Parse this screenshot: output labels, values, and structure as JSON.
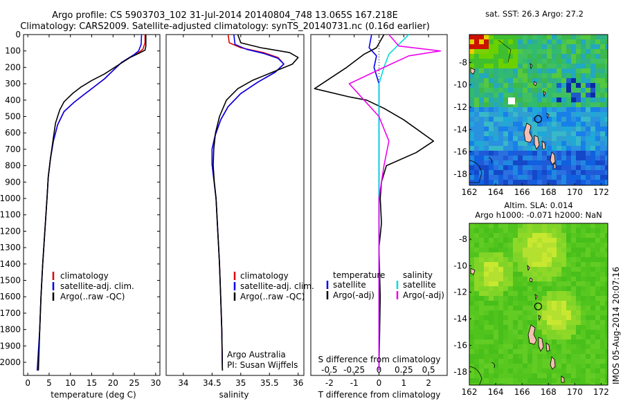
{
  "header": {
    "title_line1": "Argo profile: CS 5903703_102 31-Jul-2014 20140804_748 13.065S 167.218E",
    "title_line2": "Climatology: CARS2009. Satellite-adjusted climatology: synTS_20140731.nc (0.16d earlier)"
  },
  "side_stamp": "IMOS 05-Aug-2014 20:07:16",
  "colors": {
    "climatology": "#e00000",
    "satellite": "#0000ee",
    "argo": "#000000",
    "satellite_salinity": "#00dddd",
    "argo_salinity": "#ee00ee"
  },
  "chart_data": [
    {
      "type": "line",
      "id": "temperature",
      "xlabel": "temperature (deg C)",
      "ylabel": "",
      "xlim": [
        -1,
        31
      ],
      "ylim": [
        2080,
        0
      ],
      "x_ticks": [
        0,
        5,
        10,
        15,
        20,
        25,
        30
      ],
      "y_ticks": [
        0,
        100,
        200,
        300,
        400,
        500,
        600,
        700,
        800,
        900,
        1000,
        1100,
        1200,
        1300,
        1400,
        1500,
        1600,
        1700,
        1800,
        1900,
        2000
      ],
      "legend": {
        "position": "lower-center",
        "entries": [
          "climatology",
          "satellite-adj. clim.",
          "Argo(..raw -QC)"
        ]
      },
      "series": [
        {
          "name": "climatology",
          "color": "#e00000",
          "points": [
            [
              27.5,
              0
            ],
            [
              27.5,
              50
            ],
            [
              27.0,
              90
            ],
            [
              26.0,
              110
            ],
            [
              24.5,
              130
            ],
            [
              22.0,
              170
            ],
            [
              20.0,
              220
            ],
            [
              18.0,
              270
            ],
            [
              16.0,
              310
            ],
            [
              13.5,
              360
            ],
            [
              11.0,
              410
            ],
            [
              8.5,
              470
            ],
            [
              7.0,
              550
            ],
            [
              6.0,
              650
            ],
            [
              5.3,
              760
            ],
            [
              4.8,
              870
            ],
            [
              4.5,
              1000
            ],
            [
              4.0,
              1200
            ],
            [
              3.5,
              1400
            ],
            [
              3.1,
              1600
            ],
            [
              2.8,
              1800
            ],
            [
              2.4,
              2050
            ]
          ]
        },
        {
          "name": "satellite-adj. clim.",
          "color": "#0000ee",
          "points": [
            [
              26.7,
              0
            ],
            [
              26.6,
              60
            ],
            [
              26.0,
              100
            ],
            [
              24.8,
              125
            ],
            [
              22.0,
              170
            ],
            [
              20.0,
              220
            ],
            [
              18.0,
              270
            ],
            [
              16.0,
              310
            ],
            [
              13.5,
              360
            ],
            [
              11.0,
              410
            ],
            [
              8.5,
              470
            ],
            [
              7.0,
              550
            ],
            [
              6.0,
              650
            ],
            [
              5.3,
              760
            ],
            [
              4.8,
              870
            ],
            [
              4.5,
              1000
            ],
            [
              4.0,
              1200
            ],
            [
              3.5,
              1400
            ],
            [
              3.1,
              1600
            ],
            [
              2.8,
              1800
            ],
            [
              2.2,
              2050
            ]
          ]
        },
        {
          "name": "Argo(..raw -QC)",
          "color": "#000000",
          "points": [
            [
              27.7,
              0
            ],
            [
              27.7,
              70
            ],
            [
              27.5,
              95
            ],
            [
              26.0,
              115
            ],
            [
              24.0,
              140
            ],
            [
              21.0,
              190
            ],
            [
              18.0,
              240
            ],
            [
              15.0,
              280
            ],
            [
              12.5,
              320
            ],
            [
              10.5,
              360
            ],
            [
              8.5,
              410
            ],
            [
              7.5,
              460
            ],
            [
              6.5,
              540
            ],
            [
              6.0,
              630
            ],
            [
              5.3,
              760
            ],
            [
              4.8,
              870
            ],
            [
              4.5,
              1000
            ],
            [
              4.0,
              1200
            ],
            [
              3.5,
              1400
            ],
            [
              3.1,
              1600
            ],
            [
              2.8,
              1800
            ],
            [
              2.5,
              2050
            ]
          ]
        }
      ]
    },
    {
      "type": "line",
      "id": "salinity",
      "xlabel": "salinity",
      "ylabel": "",
      "xlim": [
        33.7,
        36.1
      ],
      "ylim": [
        2080,
        0
      ],
      "x_ticks": [
        34,
        34.5,
        35,
        35.5,
        36
      ],
      "legend": {
        "position": "lower-center",
        "entries": [
          "climatology",
          "satellite-adj. clim.",
          "Argo(..raw -QC)"
        ]
      },
      "annotations": [
        "Argo Australia",
        "PI: Susan Wijffels"
      ],
      "series": [
        {
          "name": "climatology",
          "color": "#e00000",
          "points": [
            [
              34.78,
              0
            ],
            [
              34.8,
              50
            ],
            [
              35.0,
              80
            ],
            [
              35.4,
              110
            ],
            [
              35.65,
              140
            ],
            [
              35.75,
              180
            ],
            [
              35.6,
              230
            ],
            [
              35.3,
              290
            ],
            [
              35.0,
              360
            ],
            [
              34.78,
              440
            ],
            [
              34.65,
              520
            ],
            [
              34.55,
              620
            ],
            [
              34.5,
              700
            ],
            [
              34.5,
              790
            ],
            [
              34.53,
              880
            ],
            [
              34.57,
              1000
            ],
            [
              34.6,
              1200
            ],
            [
              34.63,
              1400
            ],
            [
              34.65,
              1600
            ],
            [
              34.67,
              1800
            ],
            [
              34.68,
              2050
            ]
          ]
        },
        {
          "name": "satellite-adj. clim.",
          "color": "#0000ee",
          "points": [
            [
              34.88,
              0
            ],
            [
              34.9,
              60
            ],
            [
              35.1,
              90
            ],
            [
              35.4,
              115
            ],
            [
              35.65,
              145
            ],
            [
              35.75,
              180
            ],
            [
              35.6,
              230
            ],
            [
              35.3,
              290
            ],
            [
              35.0,
              360
            ],
            [
              34.78,
              440
            ],
            [
              34.65,
              520
            ],
            [
              34.55,
              620
            ],
            [
              34.5,
              700
            ],
            [
              34.5,
              790
            ],
            [
              34.53,
              880
            ],
            [
              34.57,
              1000
            ],
            [
              34.6,
              1200
            ],
            [
              34.63,
              1400
            ],
            [
              34.65,
              1600
            ],
            [
              34.67,
              1800
            ],
            [
              34.68,
              2050
            ]
          ]
        },
        {
          "name": "Argo(..raw -QC)",
          "color": "#000000",
          "points": [
            [
              34.95,
              0
            ],
            [
              35.0,
              50
            ],
            [
              35.35,
              80
            ],
            [
              35.85,
              110
            ],
            [
              36.0,
              140
            ],
            [
              35.9,
              180
            ],
            [
              35.55,
              230
            ],
            [
              35.2,
              280
            ],
            [
              34.95,
              330
            ],
            [
              34.75,
              400
            ],
            [
              34.63,
              500
            ],
            [
              34.56,
              600
            ],
            [
              34.53,
              700
            ],
            [
              34.52,
              800
            ],
            [
              34.54,
              900
            ],
            [
              34.57,
              1000
            ],
            [
              34.6,
              1200
            ],
            [
              34.63,
              1400
            ],
            [
              34.65,
              1600
            ],
            [
              34.67,
              1800
            ],
            [
              34.68,
              2050
            ]
          ]
        }
      ]
    },
    {
      "type": "line",
      "id": "difference",
      "xlabel": "T difference from climatology",
      "xlabel_top": "S difference from climatology",
      "ylabel": "",
      "xlim": [
        -2.75,
        2.75
      ],
      "ylim": [
        2080,
        0
      ],
      "x_ticks": [
        -2,
        -1,
        0,
        1,
        2
      ],
      "x_ticks_s": [
        -0.5,
        -0.25,
        0,
        0.25,
        0.5
      ],
      "legend": {
        "position": "lower-center",
        "headers": [
          "temperature",
          "salinity"
        ],
        "entries": [
          "satellite",
          "Argo(-adj)",
          "satellite",
          "Argo(-adj)"
        ]
      },
      "series": [
        {
          "name": "temperature satellite",
          "color": "#0000ee",
          "points": [
            [
              -0.3,
              0
            ],
            [
              -0.4,
              80
            ],
            [
              -0.1,
              130
            ],
            [
              -0.2,
              200
            ],
            [
              0.0,
              300
            ],
            [
              0.0,
              600
            ],
            [
              0.0,
              1000
            ],
            [
              0.0,
              1500
            ],
            [
              0.0,
              2050
            ]
          ]
        },
        {
          "name": "temperature Argo(-adj)",
          "color": "#000000",
          "points": [
            [
              0.2,
              0
            ],
            [
              -0.1,
              80
            ],
            [
              -0.6,
              120
            ],
            [
              -1.3,
              200
            ],
            [
              -2.6,
              330
            ],
            [
              -1.2,
              380
            ],
            [
              -0.5,
              400
            ],
            [
              0.2,
              450
            ],
            [
              1.0,
              520
            ],
            [
              2.2,
              650
            ],
            [
              1.5,
              720
            ],
            [
              0.3,
              800
            ],
            [
              0.1,
              900
            ],
            [
              0.05,
              1000
            ],
            [
              0.1,
              1150
            ],
            [
              0.0,
              1300
            ],
            [
              0.05,
              1600
            ],
            [
              0.0,
              2050
            ]
          ]
        },
        {
          "name": "salinity satellite",
          "color": "#00dddd",
          "points": [
            [
              0.3,
              0
            ],
            [
              0.2,
              60
            ],
            [
              0.1,
              120
            ],
            [
              0.05,
              200
            ],
            [
              0.0,
              300
            ],
            [
              0.0,
              600
            ],
            [
              0.0,
              2050
            ]
          ]
        },
        {
          "name": "salinity Argo(-adj)",
          "color": "#ee00ee",
          "points": [
            [
              0.1,
              0
            ],
            [
              0.2,
              70
            ],
            [
              0.62,
              100
            ],
            [
              0.3,
              130
            ],
            [
              0.05,
              200
            ],
            [
              -0.3,
              300
            ],
            [
              -0.15,
              400
            ],
            [
              0.0,
              500
            ],
            [
              0.1,
              650
            ],
            [
              0.05,
              800
            ],
            [
              0.0,
              1000
            ],
            [
              0.0,
              2050
            ]
          ]
        }
      ]
    },
    {
      "type": "heatmap",
      "id": "sst-map",
      "title": "sat. SST: 26.3 Argo: 27.2",
      "xlim": [
        162,
        172.5
      ],
      "ylim": [
        -19,
        -5.5
      ],
      "x_ticks": [
        162,
        164,
        166,
        168,
        170,
        172
      ],
      "y_ticks": [
        -18,
        -16,
        -14,
        -12,
        -10,
        -8
      ],
      "float_position": [
        167.218,
        -13.065
      ]
    },
    {
      "type": "heatmap",
      "id": "sla-map",
      "title": "Altim. SLA: 0.014",
      "subtitle": "Argo h1000: -0.071 h2000: NaN",
      "xlim": [
        162,
        172.5
      ],
      "ylim": [
        -19,
        -6.8
      ],
      "x_ticks": [
        162,
        164,
        166,
        168,
        170,
        172
      ],
      "y_ticks": [
        -18,
        -16,
        -14,
        -12,
        -10,
        -8
      ],
      "float_position": [
        167.218,
        -13.065
      ]
    }
  ]
}
